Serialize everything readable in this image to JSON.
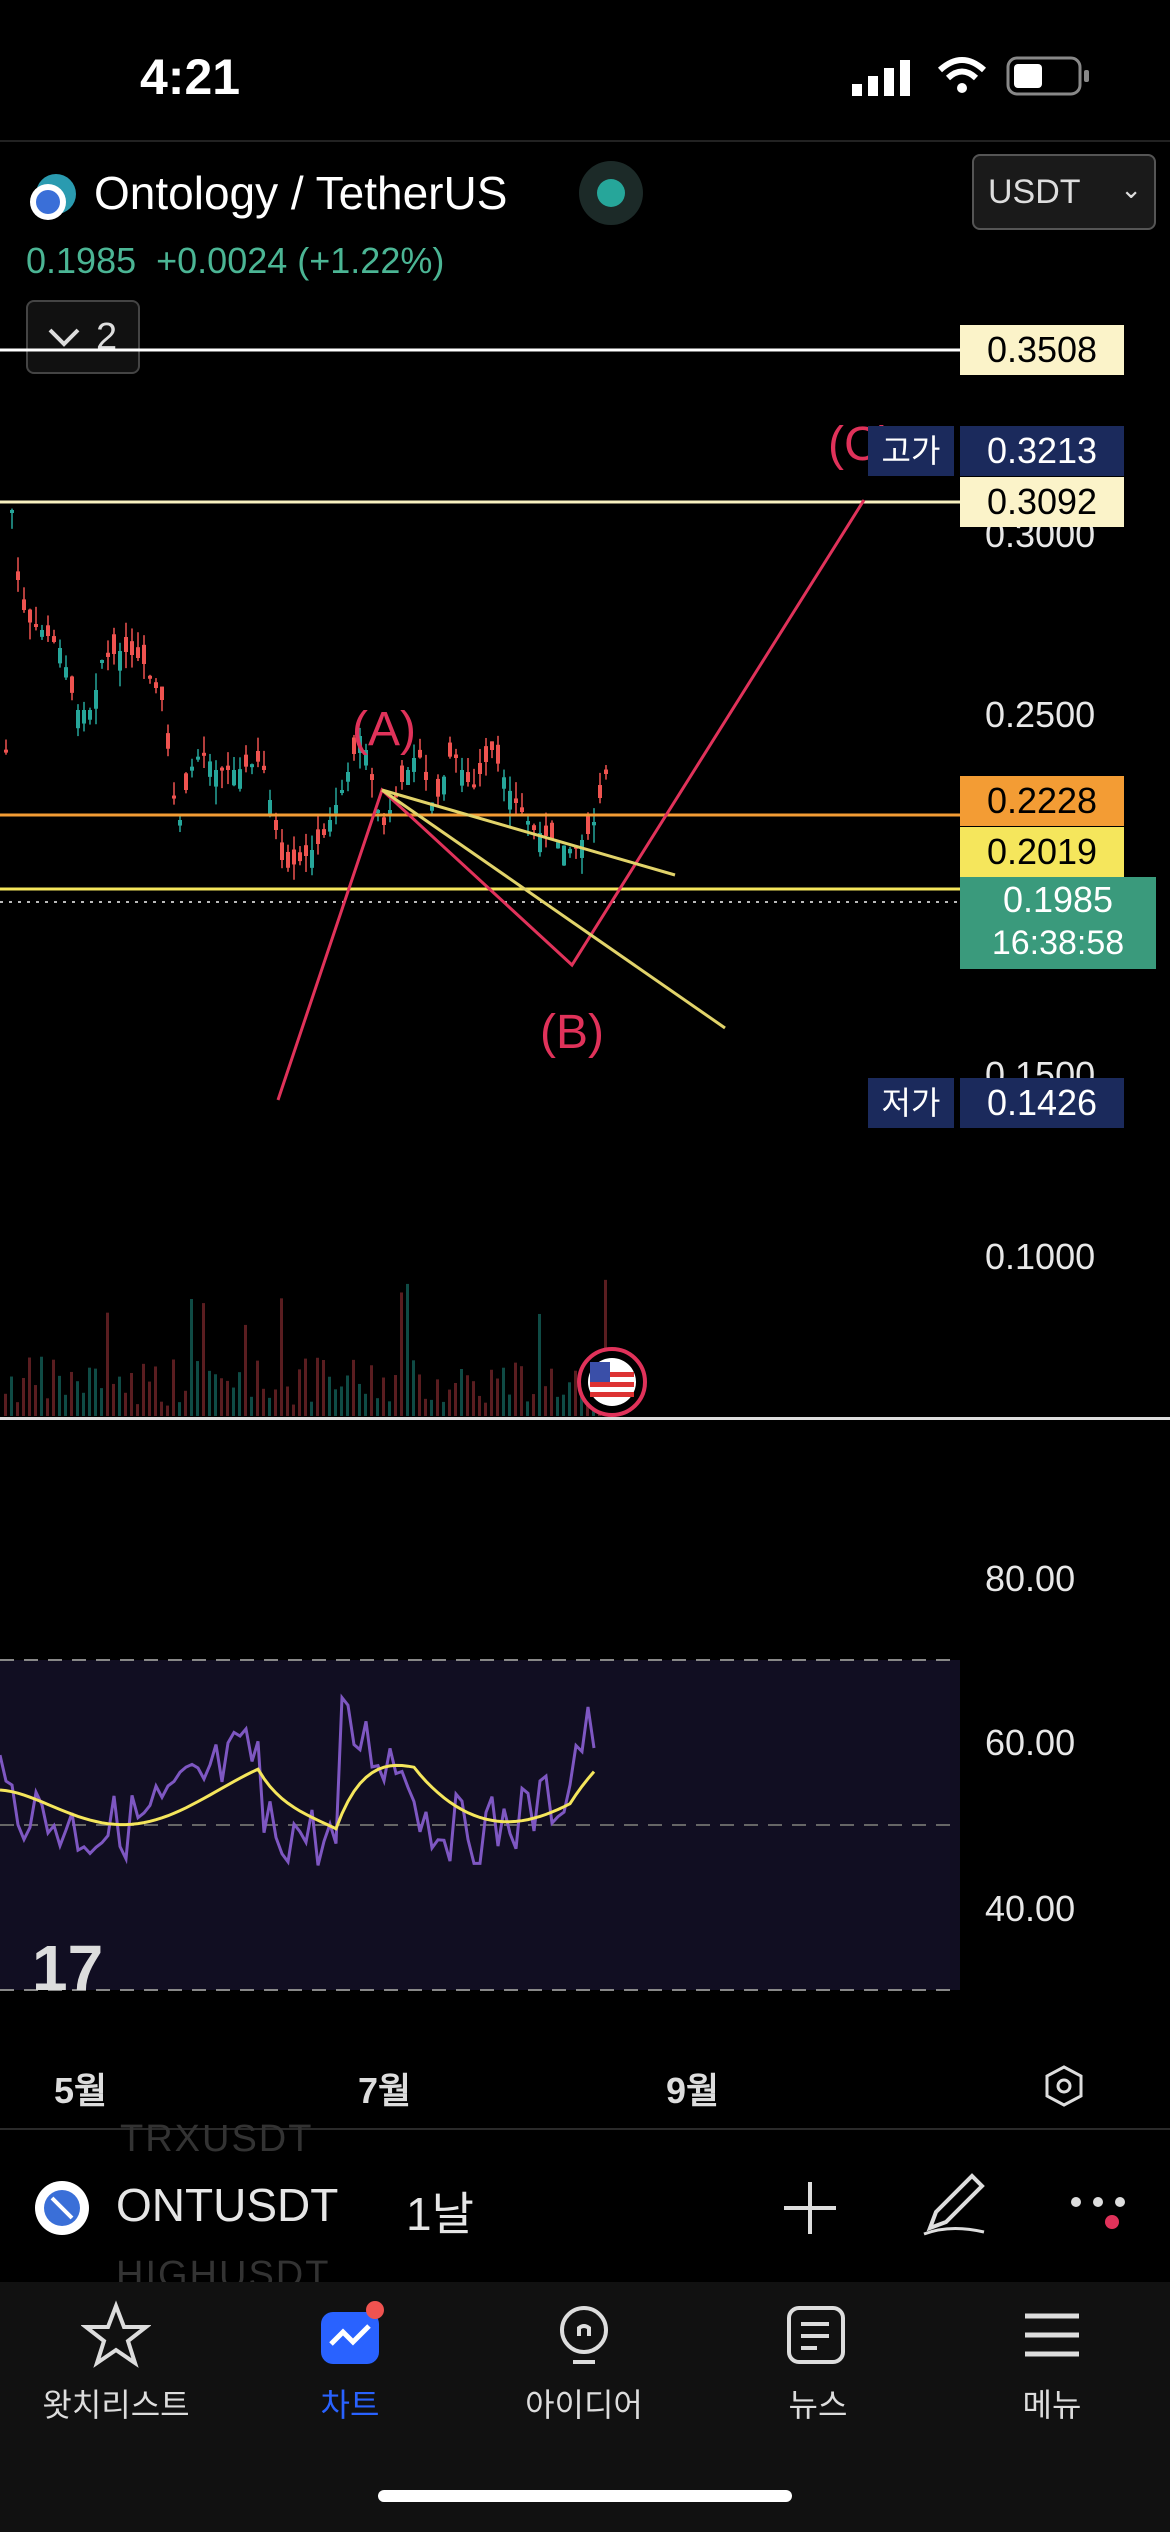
{
  "status_bar": {
    "time": "4:21"
  },
  "header": {
    "symbol_name": "Ontology / TetherUS",
    "price": "0.1985",
    "change": "+0.0024 (+1.22%)",
    "currency_select": "USDT",
    "indicator_count": "2"
  },
  "price_labels": {
    "line_top": "0.3508",
    "high_tag": "고가",
    "high_value": "0.3213",
    "line_c": "0.3092",
    "line_orange": "0.2228",
    "line_yellow": "0.2019",
    "current_price": "0.1985",
    "countdown": "16:38:58",
    "low_tag": "저가",
    "low_value": "0.1426"
  },
  "price_axis": [
    "0.3000",
    "0.2500",
    "0.1500",
    "0.1000"
  ],
  "wave_labels": {
    "a": "(A)",
    "b": "(B)",
    "c": "(C)"
  },
  "rsi_axis": [
    "80.00",
    "60.00",
    "40.00"
  ],
  "time_axis": [
    "5월",
    "7월",
    "9월"
  ],
  "bottom_toolbar": {
    "ticker": "ONTUSDT",
    "interval": "1날",
    "ghost_top": "TRXUSDT",
    "ghost_bottom": "HIGHUSDT"
  },
  "tabs": [
    {
      "label": "왓치리스트",
      "icon": "star-icon"
    },
    {
      "label": "차트",
      "icon": "chart-icon"
    },
    {
      "label": "아이디어",
      "icon": "lightbulb-icon"
    },
    {
      "label": "뉴스",
      "icon": "news-icon"
    },
    {
      "label": "메뉴",
      "icon": "menu-icon"
    }
  ],
  "colors": {
    "bull": "#26a69a",
    "bear": "#ef5350",
    "accent": "#2962ff",
    "wave": "#e0325a",
    "rsi": "#7e57c2",
    "rsi_ma": "#f5e65c"
  }
}
